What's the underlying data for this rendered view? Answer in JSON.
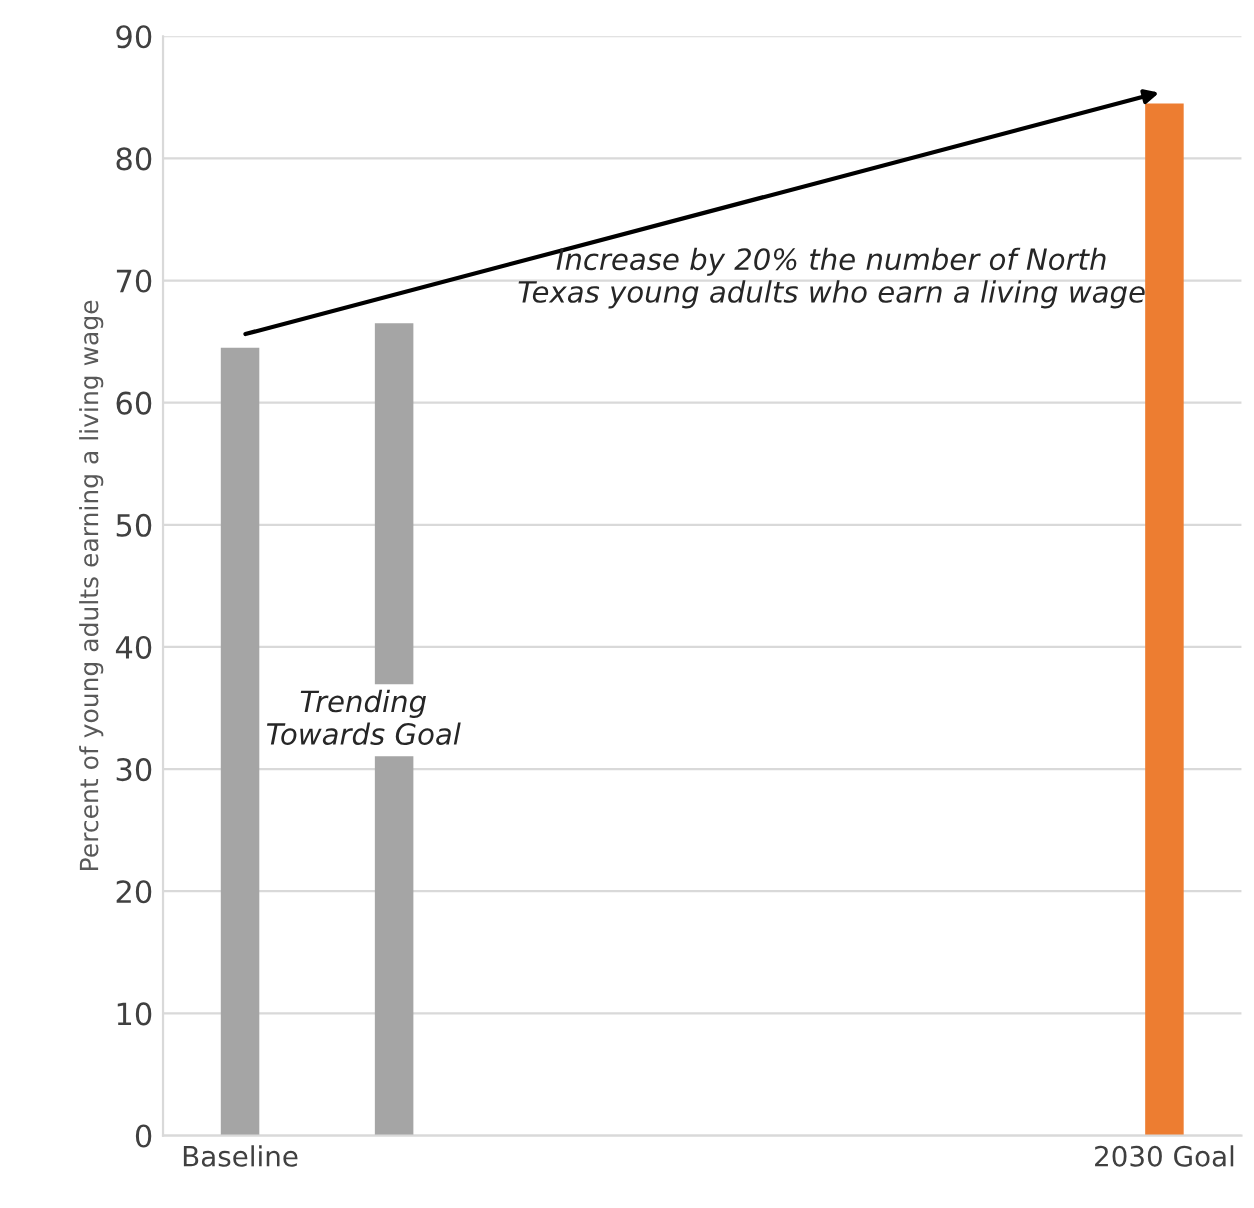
{
  "chart_data": {
    "type": "bar",
    "ylabel": "Percent of young adults earning a living wage",
    "categories": [
      "Baseline",
      null,
      null,
      null,
      null,
      null,
      "2030 Goal"
    ],
    "values": [
      64.5,
      66.5,
      null,
      null,
      null,
      null,
      84.5
    ],
    "colors": [
      "#a5a5a5",
      "#a5a5a5",
      null,
      null,
      null,
      null,
      "#ed7d31"
    ],
    "ylim": [
      0,
      90
    ],
    "yticks": [
      0,
      10,
      20,
      30,
      40,
      50,
      60,
      70,
      80,
      90
    ],
    "grid": "y",
    "annotations": [
      "Increase by 20% the number of North\nTexas young adults who earn a living wage",
      "Trending\nTowards Goal"
    ]
  }
}
